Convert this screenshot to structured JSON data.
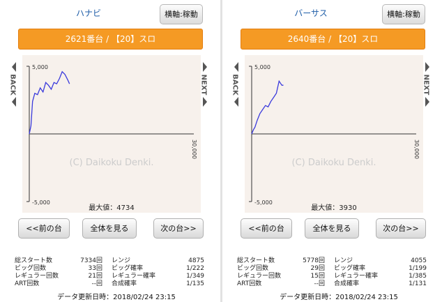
{
  "panels": [
    {
      "game_name": "ハナビ",
      "axis_button": "横軸:稼動",
      "machine_label": "2621番台 / 【20】スロ",
      "nav": {
        "back": "BACK",
        "next": "NEXT"
      },
      "chart": {
        "y_top_label": "5,000",
        "y_bottom_label": "-5,000",
        "x_right_label": "30,000",
        "watermark": "(C) Daikoku Denki.",
        "max_label": "最大値：4734"
      },
      "buttons": {
        "prev": "<<前の台",
        "all": "全体を見る",
        "next": "次の台>>"
      },
      "stats": {
        "total_start_label": "総スタート数",
        "total_start_value": "7334回",
        "big_label": "ビッグ回数",
        "big_value": "33回",
        "reg_label": "レギュラー回数",
        "reg_value": "21回",
        "art_label": "ART回数",
        "art_value": "--回",
        "range_label": "レンジ",
        "range_value": "4875",
        "big_rate_label": "ビッグ確率",
        "big_rate_value": "1/222",
        "reg_rate_label": "レギュラー確率",
        "reg_rate_value": "1/349",
        "combined_label": "合成確率",
        "combined_value": "1/135"
      },
      "update_text": "データ更新日時：2018/02/24  23:15"
    },
    {
      "game_name": "バーサス",
      "axis_button": "横軸:稼動",
      "machine_label": "2640番台 / 【20】スロ",
      "nav": {
        "back": "BACK",
        "next": "NEXT"
      },
      "chart": {
        "y_top_label": "5,000",
        "y_bottom_label": "-5,000",
        "x_right_label": "30,000",
        "watermark": "(C) Daikoku Denki.",
        "max_label": "最大値：3930"
      },
      "buttons": {
        "prev": "<<前の台",
        "all": "全体を見る",
        "next": "次の台>>"
      },
      "stats": {
        "total_start_label": "総スタート数",
        "total_start_value": "5778回",
        "big_label": "ビッグ回数",
        "big_value": "29回",
        "reg_label": "レギュラー回数",
        "reg_value": "15回",
        "art_label": "ART回数",
        "art_value": "--回",
        "range_label": "レンジ",
        "range_value": "4055",
        "big_rate_label": "ビッグ確率",
        "big_rate_value": "1/199",
        "reg_rate_label": "レギュラー確率",
        "reg_rate_value": "1/385",
        "combined_label": "合成確率",
        "combined_value": "1/131"
      },
      "update_text": "データ更新日時：2018/02/24  23:15"
    }
  ],
  "colors": {
    "accent": "#f59a24",
    "line": "#3a3adc",
    "title": "#1f5ea8"
  },
  "chart_data": [
    {
      "type": "line",
      "x": [
        0,
        300,
        600,
        1000,
        1500,
        2000,
        2500,
        3000,
        3500,
        4000,
        4500,
        5000,
        5500,
        6000,
        6500,
        7000,
        7334
      ],
      "y": [
        0,
        600,
        2400,
        3000,
        2900,
        3400,
        3100,
        3800,
        3600,
        3300,
        3800,
        3700,
        4100,
        4600,
        4400,
        4000,
        3700
      ],
      "ylim": [
        -5000,
        5000
      ],
      "xlim": [
        0,
        30000
      ]
    },
    {
      "type": "line",
      "x": [
        0,
        300,
        600,
        1000,
        1500,
        2000,
        2500,
        3000,
        3500,
        4000,
        4500,
        5000,
        5500,
        5778
      ],
      "y": [
        0,
        300,
        500,
        1000,
        1500,
        1800,
        2100,
        2000,
        2400,
        2700,
        3000,
        3900,
        3600,
        3600
      ],
      "ylim": [
        -5000,
        5000
      ],
      "xlim": [
        0,
        30000
      ]
    }
  ]
}
